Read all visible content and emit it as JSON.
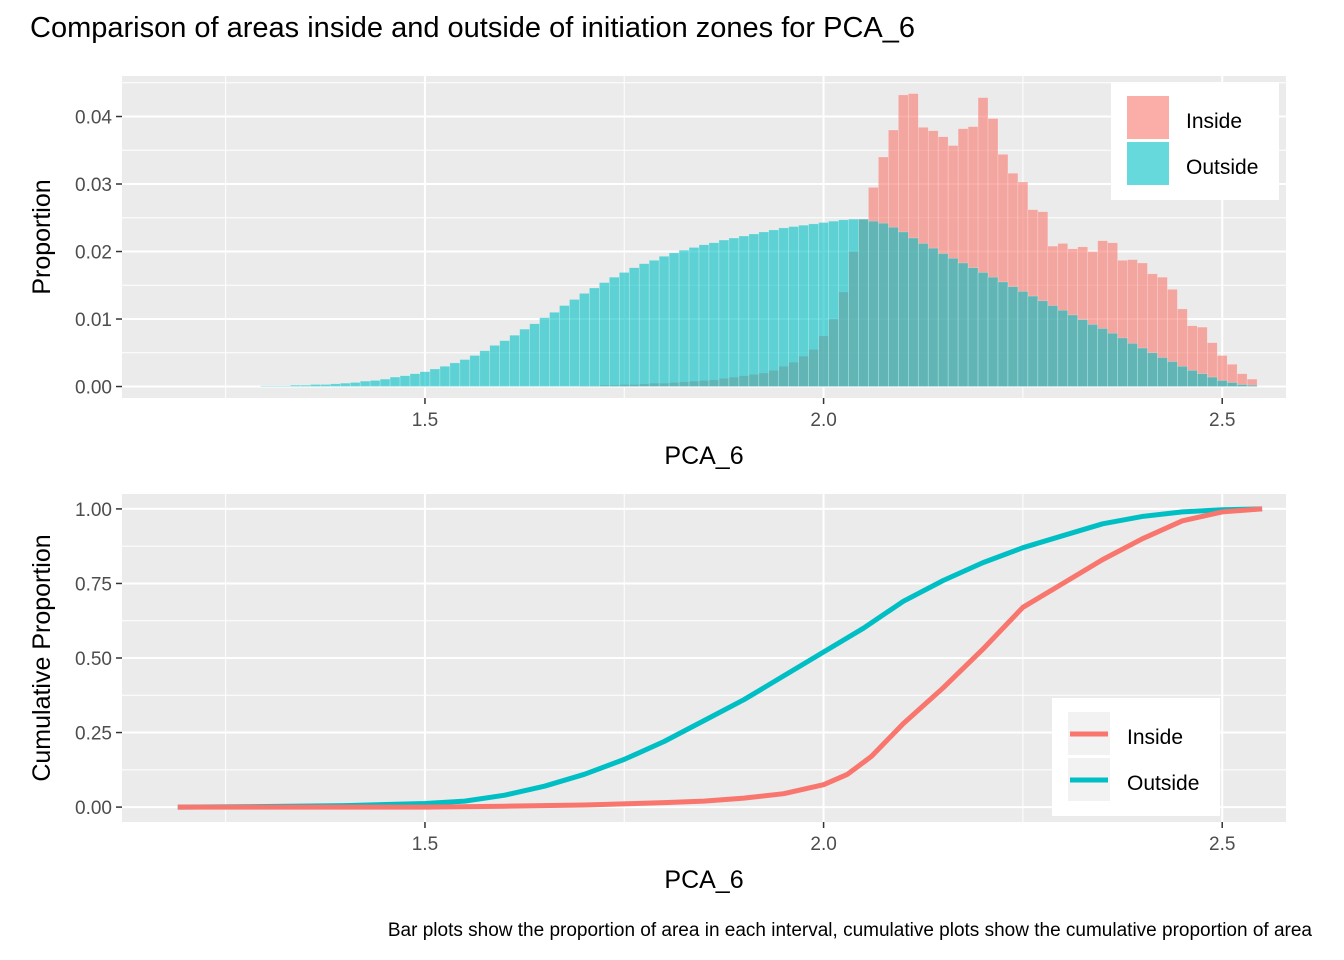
{
  "title": "Comparison of areas inside and outside of initiation zones for PCA_6",
  "caption": "Bar plots show the proportion of area in each interval, cumulative plots show the cumulative proportion of area",
  "colors": {
    "inside": "#F8766D",
    "outside": "#00BFC4",
    "panel": "#EBEBEB",
    "grid": "#FFFFFF"
  },
  "chart_data": [
    {
      "type": "bar",
      "xlabel": "PCA_6",
      "ylabel": "Proportion",
      "xlim": [
        1.12,
        2.58
      ],
      "ylim": [
        -0.0017,
        0.046
      ],
      "xticks": [
        1.5,
        2.0,
        2.5
      ],
      "xtick_labels": [
        "1.5",
        "2.0",
        "2.5"
      ],
      "yticks": [
        0,
        0.01,
        0.02,
        0.03,
        0.04
      ],
      "ytick_labels": [
        "0.00",
        "0.01",
        "0.02",
        "0.03",
        "0.04"
      ],
      "grid": true,
      "legend": "top-right",
      "bin_width": 0.0125,
      "x": [
        1.3,
        1.3125,
        1.325,
        1.3375,
        1.35,
        1.3625,
        1.375,
        1.3875,
        1.4,
        1.4125,
        1.425,
        1.4375,
        1.45,
        1.4625,
        1.475,
        1.4875,
        1.5,
        1.5125,
        1.525,
        1.5375,
        1.55,
        1.5625,
        1.575,
        1.5875,
        1.6,
        1.6125,
        1.625,
        1.6375,
        1.65,
        1.6625,
        1.675,
        1.6875,
        1.7,
        1.7125,
        1.725,
        1.7375,
        1.75,
        1.7625,
        1.775,
        1.7875,
        1.8,
        1.8125,
        1.825,
        1.8375,
        1.85,
        1.8625,
        1.875,
        1.8875,
        1.9,
        1.9125,
        1.925,
        1.9375,
        1.95,
        1.9625,
        1.975,
        1.9875,
        2.0,
        2.0125,
        2.025,
        2.0375,
        2.05,
        2.0625,
        2.075,
        2.0875,
        2.1,
        2.1125,
        2.125,
        2.1375,
        2.15,
        2.1625,
        2.175,
        2.1875,
        2.2,
        2.2125,
        2.225,
        2.2375,
        2.25,
        2.2625,
        2.275,
        2.2875,
        2.3,
        2.3125,
        2.325,
        2.3375,
        2.35,
        2.3625,
        2.375,
        2.3875,
        2.4,
        2.4125,
        2.425,
        2.4375,
        2.45,
        2.4625,
        2.475,
        2.4875,
        2.5,
        2.5125,
        2.525,
        2.5375
      ],
      "series": [
        {
          "name": "Inside",
          "values": [
            0,
            0,
            0,
            0,
            0,
            0,
            0,
            0,
            0,
            0,
            0,
            0,
            0,
            0,
            0,
            0,
            0,
            0,
            0,
            0,
            0,
            0,
            0,
            0,
            0,
            0,
            0,
            0,
            0,
            0,
            0,
            0,
            0.0001,
            0.0001,
            0.0002,
            0.0002,
            0.0003,
            0.0003,
            0.0004,
            0.0005,
            0.0005,
            0.0006,
            0.0007,
            0.0008,
            0.0009,
            0.001,
            0.0012,
            0.0014,
            0.0016,
            0.0018,
            0.002,
            0.0024,
            0.003,
            0.0036,
            0.0045,
            0.0055,
            0.0075,
            0.01,
            0.014,
            0.02,
            0.0248,
            0.0295,
            0.034,
            0.038,
            0.0432,
            0.0434,
            0.0384,
            0.0379,
            0.037,
            0.0357,
            0.0382,
            0.0385,
            0.0428,
            0.0397,
            0.0344,
            0.0316,
            0.0303,
            0.0262,
            0.0259,
            0.0208,
            0.0212,
            0.0204,
            0.0207,
            0.02,
            0.0216,
            0.0213,
            0.0187,
            0.0188,
            0.0183,
            0.0167,
            0.0162,
            0.0144,
            0.0115,
            0.009,
            0.0088,
            0.0065,
            0.0046,
            0.0033,
            0.0019,
            0.0011
          ]
        },
        {
          "name": "Outside",
          "values": [
            0.0001,
            0.0001,
            0.0001,
            0.0002,
            0.0002,
            0.0003,
            0.0003,
            0.0004,
            0.0005,
            0.0006,
            0.0008,
            0.0009,
            0.0011,
            0.0014,
            0.0016,
            0.0019,
            0.0022,
            0.0026,
            0.003,
            0.0035,
            0.004,
            0.0046,
            0.0053,
            0.0061,
            0.0068,
            0.0076,
            0.0085,
            0.0093,
            0.0102,
            0.011,
            0.012,
            0.0129,
            0.0138,
            0.0146,
            0.0154,
            0.0162,
            0.0169,
            0.0176,
            0.0182,
            0.0187,
            0.0193,
            0.0198,
            0.0202,
            0.0206,
            0.021,
            0.0213,
            0.0217,
            0.022,
            0.0223,
            0.0226,
            0.0229,
            0.0232,
            0.0235,
            0.0237,
            0.0239,
            0.0241,
            0.0243,
            0.0245,
            0.0247,
            0.0248,
            0.0248,
            0.0245,
            0.0242,
            0.0236,
            0.0229,
            0.022,
            0.0212,
            0.0205,
            0.0197,
            0.019,
            0.0183,
            0.0176,
            0.0169,
            0.0162,
            0.0155,
            0.0148,
            0.0141,
            0.0134,
            0.0127,
            0.012,
            0.0113,
            0.0106,
            0.0099,
            0.0092,
            0.0086,
            0.0079,
            0.0072,
            0.0064,
            0.0057,
            0.005,
            0.0043,
            0.0037,
            0.003,
            0.0024,
            0.0019,
            0.0014,
            0.0009,
            0.0006,
            0.0003,
            0.0002
          ]
        }
      ]
    },
    {
      "type": "line",
      "xlabel": "PCA_6",
      "ylabel": "Cumulative Proportion",
      "xlim": [
        1.12,
        2.58
      ],
      "ylim": [
        -0.05,
        1.05
      ],
      "xticks": [
        1.5,
        2.0,
        2.5
      ],
      "xtick_labels": [
        "1.5",
        "2.0",
        "2.5"
      ],
      "yticks": [
        0,
        0.25,
        0.5,
        0.75,
        1.0
      ],
      "ytick_labels": [
        "0.00",
        "0.25",
        "0.50",
        "0.75",
        "1.00"
      ],
      "grid": true,
      "legend": "bottom-right",
      "series": [
        {
          "name": "Inside",
          "x": [
            1.19,
            1.4,
            1.5,
            1.6,
            1.7,
            1.8,
            1.85,
            1.9,
            1.95,
            2.0,
            2.03,
            2.06,
            2.1,
            2.15,
            2.2,
            2.25,
            2.3,
            2.35,
            2.4,
            2.45,
            2.5,
            2.55
          ],
          "y": [
            0,
            0,
            0,
            0.003,
            0.007,
            0.015,
            0.02,
            0.03,
            0.045,
            0.075,
            0.11,
            0.17,
            0.28,
            0.4,
            0.53,
            0.67,
            0.75,
            0.83,
            0.9,
            0.96,
            0.99,
            1.0
          ]
        },
        {
          "name": "Outside",
          "x": [
            1.19,
            1.3,
            1.4,
            1.5,
            1.55,
            1.6,
            1.65,
            1.7,
            1.75,
            1.8,
            1.85,
            1.9,
            1.95,
            2.0,
            2.05,
            2.1,
            2.15,
            2.2,
            2.25,
            2.3,
            2.35,
            2.4,
            2.45,
            2.5,
            2.55
          ],
          "y": [
            0,
            0.002,
            0.005,
            0.012,
            0.02,
            0.04,
            0.07,
            0.11,
            0.16,
            0.22,
            0.29,
            0.36,
            0.44,
            0.52,
            0.6,
            0.69,
            0.76,
            0.82,
            0.87,
            0.91,
            0.95,
            0.975,
            0.99,
            0.997,
            1.0
          ]
        }
      ]
    }
  ]
}
